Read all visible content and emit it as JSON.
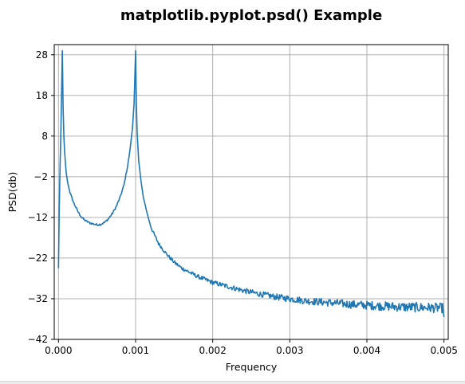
{
  "chart_data": {
    "type": "line",
    "title": "matplotlib.pyplot.psd() Example",
    "xlabel": "Frequency",
    "ylabel": "PSD(db)",
    "xlim": [
      -5.5e-05,
      0.005055
    ],
    "ylim": [
      -42,
      30.5
    ],
    "x_ticks": [
      0.0,
      0.001,
      0.002,
      0.003,
      0.004,
      0.005
    ],
    "x_tick_labels": [
      "0.000",
      "0.001",
      "0.002",
      "0.003",
      "0.004",
      "0.005"
    ],
    "y_ticks": [
      28,
      18,
      8,
      -2,
      -12,
      -22,
      -32,
      -42
    ],
    "y_tick_labels": [
      "28",
      "18",
      "8",
      "−2",
      "−12",
      "−22",
      "−32",
      "−42"
    ],
    "grid": true,
    "series": [
      {
        "color": "#1f77b4",
        "x": [
          0.0,
          1e-05,
          2e-05,
          3e-05,
          4e-05,
          5e-05,
          6e-05,
          7e-05,
          8e-05,
          0.0001,
          0.00012,
          0.00015,
          0.0002,
          0.00025,
          0.0003,
          0.00035,
          0.0004,
          0.00045,
          0.0005,
          0.00055,
          0.0006,
          0.00065,
          0.0007,
          0.00075,
          0.0008,
          0.00085,
          0.0009,
          0.00093,
          0.00096,
          0.00098,
          0.00099,
          0.001,
          0.00101,
          0.00102,
          0.00104,
          0.00107,
          0.0011,
          0.00115,
          0.0012,
          0.0013,
          0.0014,
          0.0015,
          0.0016,
          0.0017,
          0.0018,
          0.002,
          0.0022,
          0.0024,
          0.0026,
          0.0028,
          0.003,
          0.0032,
          0.0034,
          0.0036,
          0.0038,
          0.004,
          0.0042,
          0.0044,
          0.0046,
          0.0048,
          0.00499,
          0.005
        ],
        "y": [
          -24.5,
          -10,
          0,
          8,
          18,
          29,
          15,
          8,
          4,
          -1,
          -3.5,
          -6,
          -8.5,
          -10.5,
          -12,
          -12.8,
          -13.3,
          -13.6,
          -13.8,
          -13.7,
          -13.2,
          -12.3,
          -11,
          -9.3,
          -7,
          -4,
          1,
          5,
          10,
          16,
          22,
          29,
          16,
          9,
          2,
          -3,
          -7,
          -11,
          -14.5,
          -18.5,
          -21,
          -23,
          -24.5,
          -25.5,
          -26.5,
          -28,
          -29,
          -30,
          -30.8,
          -31.5,
          -32,
          -32.5,
          -32.8,
          -33.1,
          -33.4,
          -33.6,
          -33.8,
          -34,
          -34.1,
          -34.2,
          -34.3,
          -36.5
        ]
      }
    ]
  }
}
